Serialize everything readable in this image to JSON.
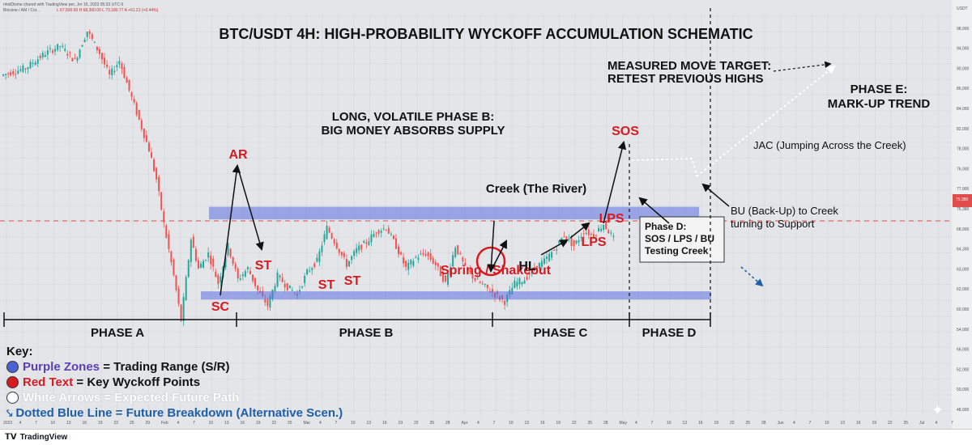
{
  "header": {
    "symbol": "Bitcoine / AM / Coi...",
    "published": "nhidDisme chared with TradingView per, Jor 15, 2023 05:33 UTC-5",
    "ohlc": "L 67,500.00 H 68,300.00 L 73,180.77 A +61.21 (+0.44%)"
  },
  "footer": {
    "brand": "TradingView"
  },
  "chart_data": {
    "type": "candlestick",
    "title": "BTC/USDT 4H: HIGH-PROBABILITY WYCKOFF ACCUMULATION SCHEMATIC",
    "ylim": [
      48000,
      102000
    ],
    "price_labels": [
      "USDT",
      "98,000",
      "94,000",
      "90,000",
      "86,000",
      "84,000",
      "82,000",
      "78,000",
      "76,000",
      "77,900",
      "75,380",
      "68,000",
      "64,300",
      "63,000",
      "62,000",
      "60,000",
      "54,000",
      "56,000",
      "52,000",
      "50,000",
      "48,000"
    ],
    "current_price": "75,380",
    "date_labels": [
      "2023",
      "4",
      "7",
      "10",
      "13",
      "16",
      "19",
      "22",
      "25",
      "29",
      "Feb",
      "4",
      "7",
      "10",
      "13",
      "16",
      "19",
      "22",
      "25",
      "Mar",
      "4",
      "7",
      "10",
      "13",
      "16",
      "19",
      "22",
      "25",
      "28",
      "Apr",
      "4",
      "7",
      "10",
      "13",
      "16",
      "19",
      "22",
      "25",
      "28",
      "May",
      "4",
      "7",
      "10",
      "13",
      "16",
      "19",
      "22",
      "25",
      "28",
      "Jun",
      "4",
      "7",
      "10",
      "13",
      "16",
      "19",
      "22",
      "25",
      "Jul",
      "4",
      "7"
    ],
    "price_path": [
      [
        0,
        94000
      ],
      [
        10,
        95000
      ],
      [
        18,
        97000
      ],
      [
        24,
        98000
      ],
      [
        30,
        96000
      ],
      [
        35,
        100000
      ],
      [
        40,
        97000
      ],
      [
        44,
        94000
      ],
      [
        48,
        96000
      ],
      [
        52,
        92000
      ],
      [
        56,
        88000
      ],
      [
        60,
        84000
      ],
      [
        63,
        80000
      ],
      [
        66,
        74000
      ],
      [
        70,
        67000
      ],
      [
        73,
        61000
      ],
      [
        77,
        72000
      ],
      [
        80,
        68000
      ],
      [
        84,
        70000
      ],
      [
        88,
        66000
      ],
      [
        92,
        71000
      ],
      [
        96,
        66500
      ],
      [
        100,
        68000
      ],
      [
        104,
        65000
      ],
      [
        108,
        63000
      ],
      [
        112,
        67000
      ],
      [
        116,
        65500
      ],
      [
        120,
        64500
      ],
      [
        124,
        67500
      ],
      [
        128,
        69000
      ],
      [
        132,
        73500
      ],
      [
        136,
        71000
      ],
      [
        140,
        68500
      ],
      [
        144,
        70500
      ],
      [
        148,
        71500
      ],
      [
        152,
        73000
      ],
      [
        156,
        73500
      ],
      [
        160,
        71000
      ],
      [
        164,
        68000
      ],
      [
        168,
        69500
      ],
      [
        172,
        70000
      ],
      [
        176,
        68500
      ],
      [
        180,
        66000
      ],
      [
        184,
        71000
      ],
      [
        188,
        68000
      ],
      [
        192,
        66500
      ],
      [
        196,
        65500
      ],
      [
        200,
        64500
      ],
      [
        204,
        63500
      ],
      [
        208,
        66000
      ],
      [
        212,
        66500
      ],
      [
        216,
        68000
      ],
      [
        220,
        69000
      ],
      [
        224,
        70500
      ],
      [
        228,
        72500
      ],
      [
        232,
        71000
      ],
      [
        236,
        73000
      ],
      [
        240,
        72500
      ],
      [
        244,
        74000
      ],
      [
        248,
        72000
      ]
    ],
    "support_band": [
      63800,
      64900
    ],
    "resistance_band": [
      74600,
      76300
    ],
    "phase_labels": [
      "PHASE A",
      "PHASE B",
      "PHASE C",
      "PHASE D"
    ],
    "annotations": {
      "phase_b": "LONG, VOLATILE PHASE B:\nBIG MONEY ABSORBS SUPPLY",
      "measured": "MEASURED MOVE TARGET:\nRETEST PREVIOUS HIGHS",
      "phase_e": "PHASE E:\nMARK-UP TREND",
      "creek": "Creek (The River)",
      "jac": "JAC (Jumping Across the Creek)",
      "bu": "BU (Back-Up) to Creek\nturning to Support",
      "phase_d_box": "Phase D:\nSOS / LPS / BU\nTesting Creek",
      "sc": "SC",
      "ar": "AR",
      "st1": "ST",
      "st2": "ST",
      "st3": "ST",
      "spring": "Spring / Shakeout",
      "hl": "HL",
      "lps1": "LPS",
      "lps2": "LPS",
      "sos": "SOS"
    },
    "key": {
      "title": "Key:",
      "items": [
        {
          "color": "#4a62d8",
          "label": "Purple Zones",
          "rest": " = Trading Range (S/R)"
        },
        {
          "color": "#d71920",
          "label": "Red Text",
          "rest": " = Key Wyckoff Points"
        },
        {
          "color": "#ffffff",
          "label": "White Arrows",
          "rest": " = Expected Future Path"
        },
        {
          "color": "#1f5fa8",
          "label": "Dotted Blue Line",
          "rest": " = Future Breakdown (Alternative Scen.)"
        }
      ]
    }
  }
}
